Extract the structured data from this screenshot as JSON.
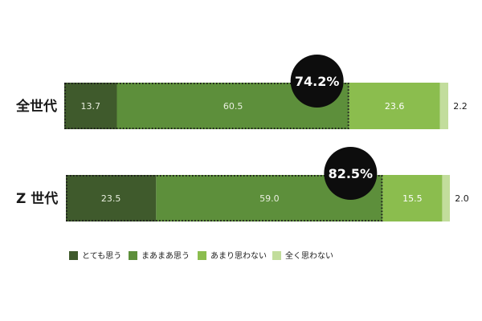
{
  "chart_data": {
    "type": "bar",
    "orientation": "horizontal",
    "stacked": true,
    "unit": "%",
    "categories": [
      "全世代",
      "Z 世代"
    ],
    "series": [
      {
        "name": "とても思う",
        "values": [
          13.7,
          23.5
        ],
        "color": "#3f5a2c"
      },
      {
        "name": "まあまあ思う",
        "values": [
          60.5,
          59.0
        ],
        "color": "#5d8f3b"
      },
      {
        "name": "あまり思わない",
        "values": [
          23.6,
          15.5
        ],
        "color": "#8bbd4e"
      },
      {
        "name": "全く思わない",
        "values": [
          2.2,
          2.0
        ],
        "color": "#c2dd9c"
      }
    ],
    "highlight": {
      "series_indices": [
        0,
        1
      ],
      "labels": [
        "74.2%",
        "82.5%"
      ],
      "style": "dotted outline with black circle badge"
    },
    "legend": {
      "position": "bottom-left",
      "items": [
        "とても思う",
        "まあまあ思う",
        "あまり思わない",
        "全く思わない"
      ]
    },
    "label_colors": [
      "#e8eedf",
      "#e8eedf",
      "#ffffff",
      "#1a1a1a"
    ],
    "xlim": [
      0,
      100
    ],
    "grid": false
  }
}
